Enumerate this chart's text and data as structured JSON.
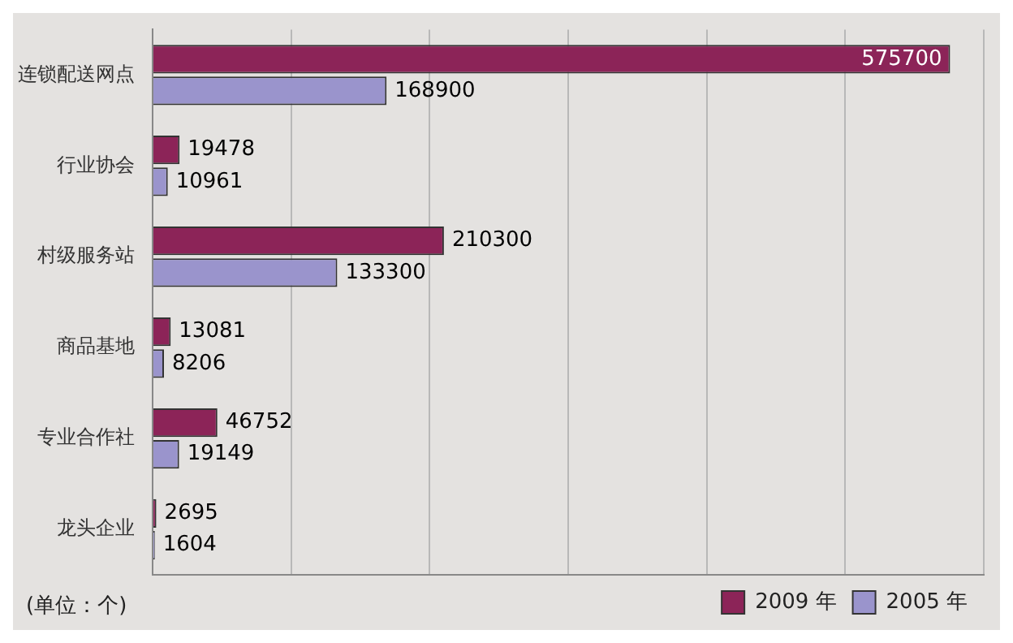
{
  "chart_data": {
    "type": "bar",
    "orientation": "horizontal",
    "categories": [
      "连锁配送网点",
      "行业协会",
      "村级服务站",
      "商品基地",
      "专业合作社",
      "龙头企业"
    ],
    "series": [
      {
        "name": "2009 年",
        "color": "#8c2458",
        "values": [
          575700,
          19478,
          210300,
          13081,
          46752,
          2695
        ]
      },
      {
        "name": "2005 年",
        "color": "#9a94cc",
        "values": [
          168900,
          10961,
          133300,
          8206,
          19149,
          1604
        ]
      }
    ],
    "xlim": [
      0,
      600000
    ],
    "xticks": [
      {
        "value": 0,
        "label": null
      },
      {
        "value": 100000,
        "label": null
      },
      {
        "value": 200000,
        "label": null
      },
      {
        "value": 300000,
        "label": null
      },
      {
        "value": 400000,
        "label": null
      },
      {
        "value": 500000,
        "label": null
      },
      {
        "value": 600000,
        "label": null
      }
    ],
    "tick_labels": "y",
    "grid": "x",
    "data_labels": true,
    "legend": "bottom right",
    "annotations": [
      "(单位：个)"
    ]
  }
}
